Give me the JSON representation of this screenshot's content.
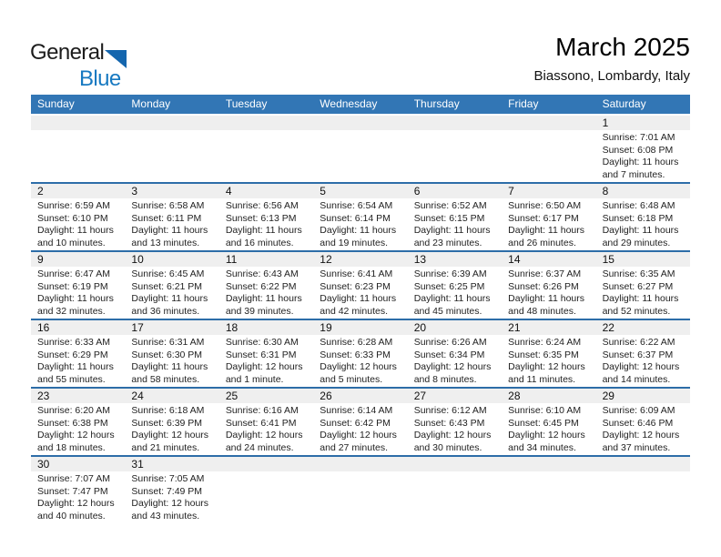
{
  "logo": {
    "general": "General",
    "blue": "Blue"
  },
  "header": {
    "title": "March 2025",
    "subtitle": "Biassono, Lombardy, Italy"
  },
  "colors": {
    "header_bar": "#3276B5",
    "row_divider": "#2D6DA8",
    "day_band": "#EFEFEF",
    "logo_blue": "#1779C1",
    "logo_triangle": "#1466AE"
  },
  "calendar": {
    "day_headers": [
      "Sunday",
      "Monday",
      "Tuesday",
      "Wednesday",
      "Thursday",
      "Friday",
      "Saturday"
    ],
    "weeks": [
      [
        null,
        null,
        null,
        null,
        null,
        null,
        {
          "day": "1",
          "lines": [
            "Sunrise: 7:01 AM",
            "Sunset: 6:08 PM",
            "Daylight: 11 hours",
            "and 7 minutes."
          ]
        }
      ],
      [
        {
          "day": "2",
          "lines": [
            "Sunrise: 6:59 AM",
            "Sunset: 6:10 PM",
            "Daylight: 11 hours",
            "and 10 minutes."
          ]
        },
        {
          "day": "3",
          "lines": [
            "Sunrise: 6:58 AM",
            "Sunset: 6:11 PM",
            "Daylight: 11 hours",
            "and 13 minutes."
          ]
        },
        {
          "day": "4",
          "lines": [
            "Sunrise: 6:56 AM",
            "Sunset: 6:13 PM",
            "Daylight: 11 hours",
            "and 16 minutes."
          ]
        },
        {
          "day": "5",
          "lines": [
            "Sunrise: 6:54 AM",
            "Sunset: 6:14 PM",
            "Daylight: 11 hours",
            "and 19 minutes."
          ]
        },
        {
          "day": "6",
          "lines": [
            "Sunrise: 6:52 AM",
            "Sunset: 6:15 PM",
            "Daylight: 11 hours",
            "and 23 minutes."
          ]
        },
        {
          "day": "7",
          "lines": [
            "Sunrise: 6:50 AM",
            "Sunset: 6:17 PM",
            "Daylight: 11 hours",
            "and 26 minutes."
          ]
        },
        {
          "day": "8",
          "lines": [
            "Sunrise: 6:48 AM",
            "Sunset: 6:18 PM",
            "Daylight: 11 hours",
            "and 29 minutes."
          ]
        }
      ],
      [
        {
          "day": "9",
          "lines": [
            "Sunrise: 6:47 AM",
            "Sunset: 6:19 PM",
            "Daylight: 11 hours",
            "and 32 minutes."
          ]
        },
        {
          "day": "10",
          "lines": [
            "Sunrise: 6:45 AM",
            "Sunset: 6:21 PM",
            "Daylight: 11 hours",
            "and 36 minutes."
          ]
        },
        {
          "day": "11",
          "lines": [
            "Sunrise: 6:43 AM",
            "Sunset: 6:22 PM",
            "Daylight: 11 hours",
            "and 39 minutes."
          ]
        },
        {
          "day": "12",
          "lines": [
            "Sunrise: 6:41 AM",
            "Sunset: 6:23 PM",
            "Daylight: 11 hours",
            "and 42 minutes."
          ]
        },
        {
          "day": "13",
          "lines": [
            "Sunrise: 6:39 AM",
            "Sunset: 6:25 PM",
            "Daylight: 11 hours",
            "and 45 minutes."
          ]
        },
        {
          "day": "14",
          "lines": [
            "Sunrise: 6:37 AM",
            "Sunset: 6:26 PM",
            "Daylight: 11 hours",
            "and 48 minutes."
          ]
        },
        {
          "day": "15",
          "lines": [
            "Sunrise: 6:35 AM",
            "Sunset: 6:27 PM",
            "Daylight: 11 hours",
            "and 52 minutes."
          ]
        }
      ],
      [
        {
          "day": "16",
          "lines": [
            "Sunrise: 6:33 AM",
            "Sunset: 6:29 PM",
            "Daylight: 11 hours",
            "and 55 minutes."
          ]
        },
        {
          "day": "17",
          "lines": [
            "Sunrise: 6:31 AM",
            "Sunset: 6:30 PM",
            "Daylight: 11 hours",
            "and 58 minutes."
          ]
        },
        {
          "day": "18",
          "lines": [
            "Sunrise: 6:30 AM",
            "Sunset: 6:31 PM",
            "Daylight: 12 hours",
            "and 1 minute."
          ]
        },
        {
          "day": "19",
          "lines": [
            "Sunrise: 6:28 AM",
            "Sunset: 6:33 PM",
            "Daylight: 12 hours",
            "and 5 minutes."
          ]
        },
        {
          "day": "20",
          "lines": [
            "Sunrise: 6:26 AM",
            "Sunset: 6:34 PM",
            "Daylight: 12 hours",
            "and 8 minutes."
          ]
        },
        {
          "day": "21",
          "lines": [
            "Sunrise: 6:24 AM",
            "Sunset: 6:35 PM",
            "Daylight: 12 hours",
            "and 11 minutes."
          ]
        },
        {
          "day": "22",
          "lines": [
            "Sunrise: 6:22 AM",
            "Sunset: 6:37 PM",
            "Daylight: 12 hours",
            "and 14 minutes."
          ]
        }
      ],
      [
        {
          "day": "23",
          "lines": [
            "Sunrise: 6:20 AM",
            "Sunset: 6:38 PM",
            "Daylight: 12 hours",
            "and 18 minutes."
          ]
        },
        {
          "day": "24",
          "lines": [
            "Sunrise: 6:18 AM",
            "Sunset: 6:39 PM",
            "Daylight: 12 hours",
            "and 21 minutes."
          ]
        },
        {
          "day": "25",
          "lines": [
            "Sunrise: 6:16 AM",
            "Sunset: 6:41 PM",
            "Daylight: 12 hours",
            "and 24 minutes."
          ]
        },
        {
          "day": "26",
          "lines": [
            "Sunrise: 6:14 AM",
            "Sunset: 6:42 PM",
            "Daylight: 12 hours",
            "and 27 minutes."
          ]
        },
        {
          "day": "27",
          "lines": [
            "Sunrise: 6:12 AM",
            "Sunset: 6:43 PM",
            "Daylight: 12 hours",
            "and 30 minutes."
          ]
        },
        {
          "day": "28",
          "lines": [
            "Sunrise: 6:10 AM",
            "Sunset: 6:45 PM",
            "Daylight: 12 hours",
            "and 34 minutes."
          ]
        },
        {
          "day": "29",
          "lines": [
            "Sunrise: 6:09 AM",
            "Sunset: 6:46 PM",
            "Daylight: 12 hours",
            "and 37 minutes."
          ]
        }
      ],
      [
        {
          "day": "30",
          "lines": [
            "Sunrise: 7:07 AM",
            "Sunset: 7:47 PM",
            "Daylight: 12 hours",
            "and 40 minutes."
          ]
        },
        {
          "day": "31",
          "lines": [
            "Sunrise: 7:05 AM",
            "Sunset: 7:49 PM",
            "Daylight: 12 hours",
            "and 43 minutes."
          ]
        },
        null,
        null,
        null,
        null,
        null
      ]
    ]
  }
}
